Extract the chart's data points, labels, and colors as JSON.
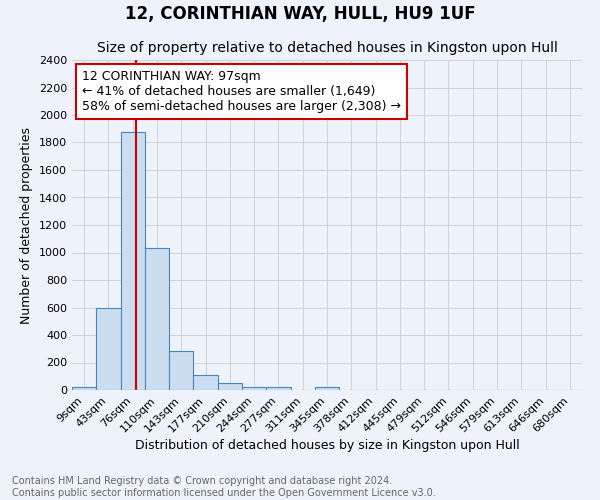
{
  "title": "12, CORINTHIAN WAY, HULL, HU9 1UF",
  "subtitle": "Size of property relative to detached houses in Kingston upon Hull",
  "xlabel": "Distribution of detached houses by size in Kingston upon Hull",
  "ylabel": "Number of detached properties",
  "footer": "Contains HM Land Registry data © Crown copyright and database right 2024.\nContains public sector information licensed under the Open Government Licence v3.0.",
  "bins": [
    "9sqm",
    "43sqm",
    "76sqm",
    "110sqm",
    "143sqm",
    "177sqm",
    "210sqm",
    "244sqm",
    "277sqm",
    "311sqm",
    "345sqm",
    "378sqm",
    "412sqm",
    "445sqm",
    "479sqm",
    "512sqm",
    "546sqm",
    "579sqm",
    "613sqm",
    "646sqm",
    "680sqm"
  ],
  "values": [
    20,
    600,
    1880,
    1030,
    285,
    110,
    48,
    25,
    20,
    0,
    20,
    0,
    0,
    0,
    0,
    0,
    0,
    0,
    0,
    0,
    0
  ],
  "bar_color": "#ccddef",
  "bar_edge_color": "#4488bb",
  "background_color": "#eef2fb",
  "ylim": [
    0,
    2400
  ],
  "yticks": [
    0,
    200,
    400,
    600,
    800,
    1000,
    1200,
    1400,
    1600,
    1800,
    2000,
    2200,
    2400
  ],
  "bin_sqm": [
    9,
    43,
    76,
    110,
    143,
    177,
    210,
    244,
    277,
    311,
    345,
    378,
    412,
    445,
    479,
    512,
    546,
    579,
    613,
    646,
    680
  ],
  "property_size": 97,
  "property_label": "12 CORINTHIAN WAY: 97sqm",
  "annotation_line1": "← 41% of detached houses are smaller (1,649)",
  "annotation_line2": "58% of semi-detached houses are larger (2,308) →",
  "vline_color": "#cc0000",
  "annotation_box_edge_color": "#cc0000",
  "title_fontsize": 12,
  "subtitle_fontsize": 10,
  "axis_label_fontsize": 9,
  "tick_fontsize": 8,
  "footer_fontsize": 7,
  "annotation_fontsize": 9
}
